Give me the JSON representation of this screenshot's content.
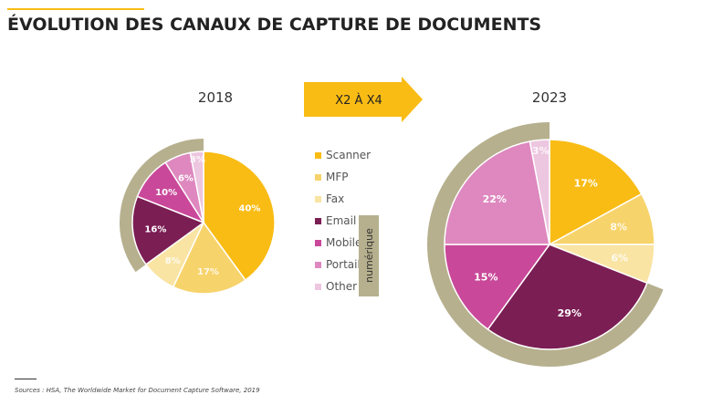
{
  "title": "ÉVOLUTION DES CANAUX DE CAPTURE DE DOCUMENTS",
  "arrow_label": "X2 À X4",
  "group_label": "numérique",
  "source": "Sources : HSA, The Worldwide Market for Document Capture Software, 2019",
  "colors": {
    "Scanner": "#F9BC15",
    "MFP": "#F7D36B",
    "Fax": "#F9E4A3",
    "Email": "#7B1E54",
    "Mobile": "#C9489A",
    "Portail": "#DE88BF",
    "Other": "#EDC6E0",
    "arc": "#B6B08E"
  },
  "chart_data": [
    {
      "type": "pie",
      "title": "2018",
      "categories": [
        "Scanner",
        "MFP",
        "Fax",
        "Email",
        "Mobile",
        "Portail",
        "Other"
      ],
      "values": [
        40,
        17,
        8,
        16,
        10,
        6,
        3
      ],
      "highlight_group": "numérique",
      "highlight_categories": [
        "Email",
        "Mobile",
        "Portail",
        "Other"
      ]
    },
    {
      "type": "pie",
      "title": "2023",
      "categories": [
        "Scanner",
        "MFP",
        "Fax",
        "Email",
        "Mobile",
        "Portail",
        "Other"
      ],
      "values": [
        17,
        8,
        6,
        29,
        15,
        22,
        3
      ],
      "highlight_group": "numérique",
      "highlight_categories": [
        "Email",
        "Mobile",
        "Portail",
        "Other"
      ]
    }
  ],
  "legend": [
    "Scanner",
    "MFP",
    "Fax",
    "Email",
    "Mobile",
    "Portail",
    "Other"
  ]
}
